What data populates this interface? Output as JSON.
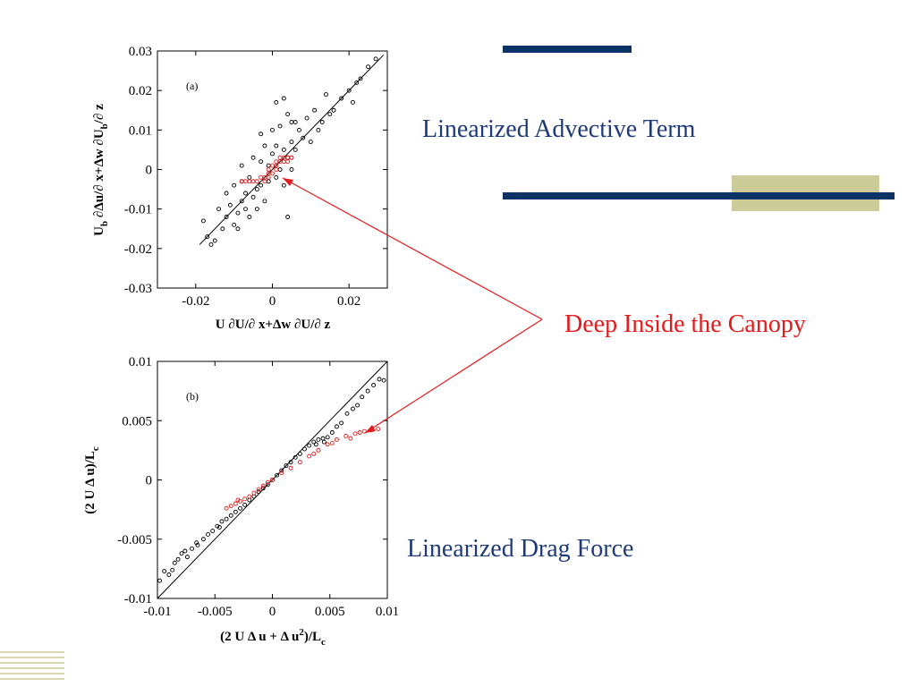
{
  "slide": {
    "title_advective": "Linearized Advective Term",
    "title_canopy": "Deep Inside the Canopy",
    "title_drag": "Linearized Drag Force",
    "colors": {
      "navy": "#0c3266",
      "red": "#e41a1c",
      "beige": "#cccc99",
      "title_blue": "#1f3a78"
    }
  },
  "chart_data": [
    {
      "type": "scatter",
      "panel_label": "(a)",
      "xlabel": "U ∂U/∂ x+Δw ∂U/∂ z",
      "ylabel_main": "U",
      "ylabel_sub": "b",
      "ylabel_rest": " ∂Δu/∂ x+Δw ∂U",
      "ylabel_sub2": "b",
      "ylabel_end": "/∂ z",
      "xlim": [
        -0.03,
        0.03
      ],
      "ylim": [
        -0.03,
        0.03
      ],
      "xticks": [
        -0.02,
        0,
        0.02
      ],
      "xtick_labels": [
        "-0.02",
        "0",
        "0.02"
      ],
      "yticks": [
        -0.03,
        -0.02,
        -0.01,
        0,
        0.01,
        0.02,
        0.03
      ],
      "ytick_labels": [
        "-0.03",
        "-0.02",
        "-0.01",
        "0",
        "0.01",
        "0.02",
        "0.03"
      ],
      "reference_line": [
        [
          -0.019,
          -0.019
        ],
        [
          0.029,
          0.029
        ]
      ],
      "series": [
        {
          "color": "#000000",
          "points": [
            [
              -0.018,
              -0.013
            ],
            [
              -0.017,
              -0.017
            ],
            [
              -0.016,
              -0.019
            ],
            [
              -0.015,
              -0.018
            ],
            [
              -0.014,
              -0.01
            ],
            [
              -0.013,
              -0.015
            ],
            [
              -0.012,
              -0.006
            ],
            [
              -0.012,
              -0.012
            ],
            [
              -0.011,
              -0.009
            ],
            [
              -0.01,
              -0.014
            ],
            [
              -0.01,
              -0.004
            ],
            [
              -0.009,
              -0.011
            ],
            [
              -0.009,
              -0.015
            ],
            [
              -0.008,
              -0.008
            ],
            [
              -0.008,
              -0.003
            ],
            [
              -0.007,
              -0.01
            ],
            [
              -0.007,
              -0.006
            ],
            [
              -0.006,
              -0.012
            ],
            [
              -0.006,
              -0.002
            ],
            [
              -0.005,
              -0.007
            ],
            [
              -0.005,
              0.003
            ],
            [
              -0.004,
              -0.005
            ],
            [
              -0.004,
              -0.01
            ],
            [
              -0.003,
              0.002
            ],
            [
              -0.003,
              -0.004
            ],
            [
              -0.002,
              0.006
            ],
            [
              -0.002,
              -0.008
            ],
            [
              -0.001,
              0.001
            ],
            [
              -0.001,
              -0.003
            ],
            [
              0.0,
              0.004
            ],
            [
              0.0,
              0.01
            ],
            [
              0.001,
              -0.002
            ],
            [
              0.001,
              0.006
            ],
            [
              0.002,
              0.0
            ],
            [
              0.002,
              0.011
            ],
            [
              0.003,
              0.005
            ],
            [
              0.003,
              -0.004
            ],
            [
              0.004,
              0.003
            ],
            [
              0.004,
              0.014
            ],
            [
              0.005,
              0.007
            ],
            [
              0.005,
              0.0
            ],
            [
              0.006,
              0.012
            ],
            [
              0.006,
              0.005
            ],
            [
              0.007,
              0.01
            ],
            [
              0.008,
              0.008
            ],
            [
              0.009,
              0.013
            ],
            [
              0.01,
              0.007
            ],
            [
              0.011,
              0.015
            ],
            [
              0.012,
              0.01
            ],
            [
              0.013,
              0.012
            ],
            [
              0.014,
              0.019
            ],
            [
              0.015,
              0.014
            ],
            [
              0.016,
              0.015
            ],
            [
              0.018,
              0.018
            ],
            [
              0.02,
              0.02
            ],
            [
              0.021,
              0.017
            ],
            [
              0.022,
              0.022
            ],
            [
              0.023,
              0.023
            ],
            [
              0.025,
              0.026
            ],
            [
              0.027,
              0.028
            ],
            [
              0.003,
              0.018
            ],
            [
              0.005,
              0.012
            ],
            [
              -0.008,
              0.001
            ],
            [
              0.004,
              -0.012
            ],
            [
              -0.003,
              0.009
            ],
            [
              0.001,
              0.017
            ]
          ]
        },
        {
          "color": "#e41a1c",
          "points": [
            [
              -0.008,
              -0.003
            ],
            [
              -0.007,
              -0.003
            ],
            [
              -0.006,
              -0.003
            ],
            [
              -0.005,
              -0.003
            ],
            [
              -0.004,
              -0.003
            ],
            [
              -0.003,
              -0.002
            ],
            [
              -0.002,
              -0.003
            ],
            [
              -0.002,
              -0.002
            ],
            [
              -0.001,
              -0.001
            ],
            [
              -0.001,
              0.0
            ],
            [
              0.0,
              -0.001
            ],
            [
              0.0,
              0.001
            ],
            [
              0.001,
              0.0
            ],
            [
              0.001,
              0.002
            ],
            [
              0.002,
              0.002
            ],
            [
              0.002,
              0.003
            ],
            [
              0.003,
              0.002
            ],
            [
              0.003,
              0.003
            ],
            [
              0.004,
              0.003
            ],
            [
              0.004,
              0.002
            ],
            [
              0.005,
              0.003
            ],
            [
              0.005,
              0.003
            ],
            [
              0.001,
              0.001
            ],
            [
              -0.001,
              -0.002
            ]
          ]
        }
      ]
    },
    {
      "type": "scatter",
      "panel_label": "(b)",
      "xlabel_pre": "(2 U Δ u + Δ u",
      "xlabel_sup": "2",
      "xlabel_post": ")/L",
      "xlabel_sub": "c",
      "ylabel_main": "(2 U Δ u)/L",
      "ylabel_sub": "c",
      "xlim": [
        -0.01,
        0.01
      ],
      "ylim": [
        -0.01,
        0.01
      ],
      "xticks": [
        -0.01,
        -0.005,
        0,
        0.005,
        0.01
      ],
      "xtick_labels": [
        "-0.01",
        "-0.005",
        "0",
        "0.005",
        "0.01"
      ],
      "yticks": [
        -0.01,
        -0.005,
        0,
        0.005,
        0.01
      ],
      "ytick_labels": [
        "-0.01",
        "-0.005",
        "0",
        "0.005",
        "0.01"
      ],
      "reference_line": [
        [
          -0.01,
          -0.01
        ],
        [
          0.01,
          0.01
        ]
      ],
      "series": [
        {
          "color": "#000000",
          "points": [
            [
              -0.0098,
              -0.0085
            ],
            [
              -0.0094,
              -0.0077
            ],
            [
              -0.009,
              -0.008
            ],
            [
              -0.0087,
              -0.0076
            ],
            [
              -0.0085,
              -0.007
            ],
            [
              -0.0082,
              -0.0067
            ],
            [
              -0.0079,
              -0.0062
            ],
            [
              -0.0076,
              -0.006
            ],
            [
              -0.0074,
              -0.0065
            ],
            [
              -0.007,
              -0.0058
            ],
            [
              -0.0065,
              -0.0055
            ],
            [
              -0.006,
              -0.005
            ],
            [
              -0.0056,
              -0.0046
            ],
            [
              -0.0052,
              -0.0043
            ],
            [
              -0.0048,
              -0.0039
            ],
            [
              -0.0044,
              -0.0035
            ],
            [
              -0.004,
              -0.0033
            ],
            [
              -0.0036,
              -0.003
            ],
            [
              -0.0032,
              -0.0027
            ],
            [
              -0.0028,
              -0.0024
            ],
            [
              -0.0024,
              -0.0021
            ],
            [
              -0.002,
              -0.0017
            ],
            [
              -0.0016,
              -0.0014
            ],
            [
              -0.0012,
              -0.001
            ],
            [
              -0.0008,
              -0.0007
            ],
            [
              -0.0004,
              -0.0004
            ],
            [
              0.0,
              0.0
            ],
            [
              0.0004,
              0.0004
            ],
            [
              0.0008,
              0.0008
            ],
            [
              0.0012,
              0.0012
            ],
            [
              0.0016,
              0.0015
            ],
            [
              0.002,
              0.0019
            ],
            [
              0.0024,
              0.0022
            ],
            [
              0.0028,
              0.0026
            ],
            [
              0.0032,
              0.0029
            ],
            [
              0.0036,
              0.0032
            ],
            [
              0.004,
              0.0034
            ],
            [
              0.0044,
              0.0035
            ],
            [
              0.0048,
              0.0036
            ],
            [
              0.0052,
              0.004
            ],
            [
              0.0056,
              0.0045
            ],
            [
              0.006,
              0.0048
            ],
            [
              0.0065,
              0.0056
            ],
            [
              0.007,
              0.006
            ],
            [
              0.0074,
              0.0063
            ],
            [
              0.0078,
              0.007
            ],
            [
              0.0083,
              0.0075
            ],
            [
              0.0088,
              0.008
            ],
            [
              0.0093,
              0.0085
            ],
            [
              0.0097,
              0.0084
            ],
            [
              -0.0066,
              -0.0053
            ],
            [
              0.0038,
              0.003
            ],
            [
              0.0045,
              0.0032
            ],
            [
              -0.0046,
              -0.004
            ]
          ]
        },
        {
          "color": "#e41a1c",
          "points": [
            [
              -0.004,
              -0.0024
            ],
            [
              -0.0036,
              -0.0022
            ],
            [
              -0.0032,
              -0.002
            ],
            [
              -0.0028,
              -0.0018
            ],
            [
              -0.0024,
              -0.0016
            ],
            [
              -0.002,
              -0.0014
            ],
            [
              -0.0016,
              -0.0011
            ],
            [
              -0.0012,
              -0.0008
            ],
            [
              -0.0008,
              -0.0005
            ],
            [
              -0.0004,
              -0.0002
            ],
            [
              0.0,
              0.0
            ],
            [
              0.0008,
              0.0006
            ],
            [
              0.0016,
              0.001
            ],
            [
              0.0024,
              0.0015
            ],
            [
              0.0032,
              0.002
            ],
            [
              0.004,
              0.0025
            ],
            [
              0.0048,
              0.003
            ],
            [
              0.0056,
              0.0034
            ],
            [
              0.0064,
              0.0037
            ],
            [
              0.0072,
              0.0039
            ],
            [
              0.008,
              0.0041
            ],
            [
              0.0086,
              0.0042
            ],
            [
              0.0092,
              0.0043
            ],
            [
              0.0036,
              0.0022
            ],
            [
              0.0068,
              0.0035
            ],
            [
              -0.003,
              -0.0017
            ],
            [
              0.0052,
              0.0031
            ],
            [
              0.0076,
              0.004
            ]
          ]
        }
      ]
    }
  ]
}
